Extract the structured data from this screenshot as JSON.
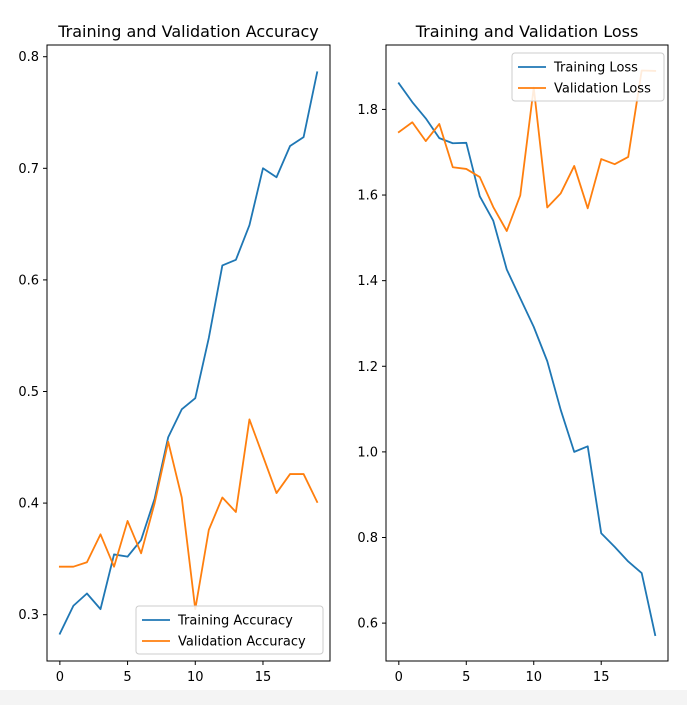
{
  "chart_data": [
    {
      "type": "line",
      "title": "Training and Validation Accuracy",
      "xlabel": "",
      "ylabel": "",
      "xlim": [
        -0.95,
        19.95
      ],
      "ylim": [
        0.2585,
        0.8105
      ],
      "xticks": [
        0,
        5,
        10,
        15
      ],
      "yticks": [
        0.3,
        0.4,
        0.5,
        0.6,
        0.7,
        0.8
      ],
      "xtick_labels": [
        "0",
        "5",
        "10",
        "15"
      ],
      "ytick_labels": [
        "0.3",
        "0.4",
        "0.5",
        "0.6",
        "0.7",
        "0.8"
      ],
      "grid": false,
      "legend_position": "lower right",
      "x": [
        0,
        1,
        2,
        3,
        4,
        5,
        6,
        7,
        8,
        9,
        10,
        11,
        12,
        13,
        14,
        15,
        16,
        17,
        18,
        19
      ],
      "series": [
        {
          "name": "Training Accuracy",
          "color": "#1f77b4",
          "values": [
            0.283,
            0.308,
            0.319,
            0.305,
            0.354,
            0.352,
            0.367,
            0.404,
            0.459,
            0.484,
            0.494,
            0.548,
            0.613,
            0.618,
            0.649,
            0.7,
            0.692,
            0.72,
            0.728,
            0.786
          ]
        },
        {
          "name": "Validation Accuracy",
          "color": "#ff7f0e",
          "values": [
            0.343,
            0.343,
            0.347,
            0.372,
            0.343,
            0.384,
            0.355,
            0.4,
            0.455,
            0.405,
            0.305,
            0.376,
            0.405,
            0.392,
            0.475,
            0.442,
            0.409,
            0.426,
            0.426,
            0.401
          ]
        }
      ]
    },
    {
      "type": "line",
      "title": "Training and Validation Loss",
      "xlabel": "",
      "ylabel": "",
      "xlim": [
        -0.95,
        19.95
      ],
      "ylim": [
        0.5115,
        1.9505
      ],
      "xticks": [
        0,
        5,
        10,
        15
      ],
      "yticks": [
        0.6,
        0.8,
        1.0,
        1.2,
        1.4,
        1.6,
        1.8
      ],
      "xtick_labels": [
        "0",
        "5",
        "10",
        "15"
      ],
      "ytick_labels": [
        "0.6",
        "0.8",
        "1.0",
        "1.2",
        "1.4",
        "1.6",
        "1.8"
      ],
      "grid": false,
      "legend_position": "upper right",
      "x": [
        0,
        1,
        2,
        3,
        4,
        5,
        6,
        7,
        8,
        9,
        10,
        11,
        12,
        13,
        14,
        15,
        16,
        17,
        18,
        19
      ],
      "series": [
        {
          "name": "Training Loss",
          "color": "#1f77b4",
          "values": [
            1.861,
            1.817,
            1.779,
            1.733,
            1.721,
            1.722,
            1.597,
            1.54,
            1.426,
            1.359,
            1.292,
            1.212,
            1.098,
            1.0,
            1.013,
            0.81,
            0.778,
            0.744,
            0.717,
            0.572
          ]
        },
        {
          "name": "Validation Loss",
          "color": "#ff7f0e",
          "values": [
            1.747,
            1.77,
            1.726,
            1.766,
            1.665,
            1.661,
            1.642,
            1.572,
            1.516,
            1.599,
            1.851,
            1.571,
            1.604,
            1.668,
            1.569,
            1.684,
            1.672,
            1.689,
            1.891,
            1.89
          ]
        }
      ]
    }
  ]
}
